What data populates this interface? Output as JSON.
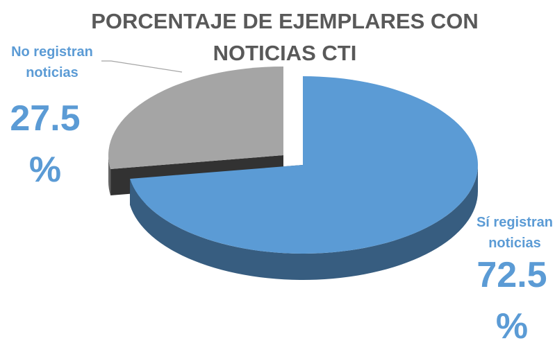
{
  "chart_data": {
    "type": "pie",
    "title": "PORCENTAJE DE EJEMPLARES CON NOTICIAS CTI",
    "categories": [
      "Sí registran noticias",
      "No registran noticias"
    ],
    "values": [
      72.5,
      27.5
    ],
    "value_labels": [
      "72.5 %",
      "27.5 %"
    ],
    "colors": [
      "#5b9bd5",
      "#a5a5a5"
    ]
  }
}
